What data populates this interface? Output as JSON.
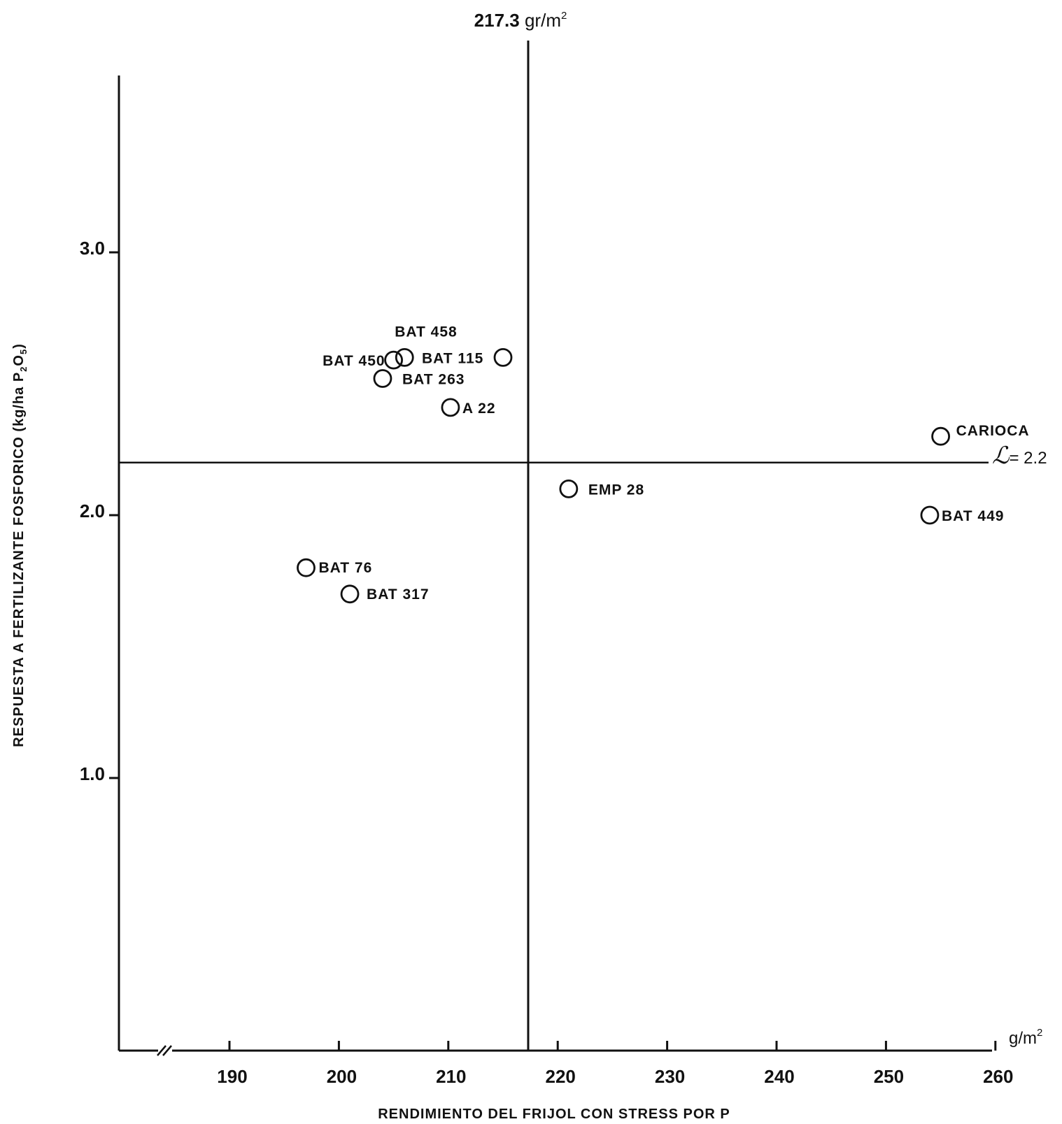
{
  "chart_data": {
    "type": "scatter",
    "title": "",
    "xlabel": "RENDIMIENTO DEL FRIJOL CON STRESS POR P",
    "x_unit": "g/m",
    "x_unit_sup": "2",
    "ylabel": "RESPUESTA A FERTILIZANTE FOSFORICO (kg/ha P",
    "ylabel_sub1": "2",
    "ylabel_mid": "O",
    "ylabel_sub2": "5",
    "ylabel_end": ")",
    "xlim": [
      180,
      260
    ],
    "ylim": [
      0,
      3.7
    ],
    "x_ticks": [
      "190",
      "200",
      "210",
      "220",
      "230",
      "240",
      "250",
      "260"
    ],
    "y_ticks": [
      "1.0",
      "2.0",
      "3.0"
    ],
    "axis_break": "//",
    "reference_lines": {
      "vertical": {
        "x": 217.3,
        "label_value": "217.3",
        "label_unit": " gr/m",
        "label_sup": "2"
      },
      "horizontal": {
        "y": 2.2,
        "label_symbol": "ℒ",
        "label_value": "= 2.2"
      }
    },
    "points": [
      {
        "label": "BAT 458",
        "x": 206,
        "y": 2.6
      },
      {
        "label": "BAT 450",
        "x": 205,
        "y": 2.59
      },
      {
        "label": "BAT 115",
        "x": 215,
        "y": 2.6
      },
      {
        "label": "BAT 263",
        "x": 204,
        "y": 2.52
      },
      {
        "label": "A 22",
        "x": 210.2,
        "y": 2.41
      },
      {
        "label": "CARIOCA",
        "x": 255,
        "y": 2.3
      },
      {
        "label": "EMP 28",
        "x": 221,
        "y": 2.1
      },
      {
        "label": "BAT 449",
        "x": 254,
        "y": 2.0
      },
      {
        "label": "BAT 76",
        "x": 197,
        "y": 1.8
      },
      {
        "label": "BAT 317",
        "x": 201,
        "y": 1.7
      }
    ],
    "grid": false,
    "legend": "none"
  }
}
